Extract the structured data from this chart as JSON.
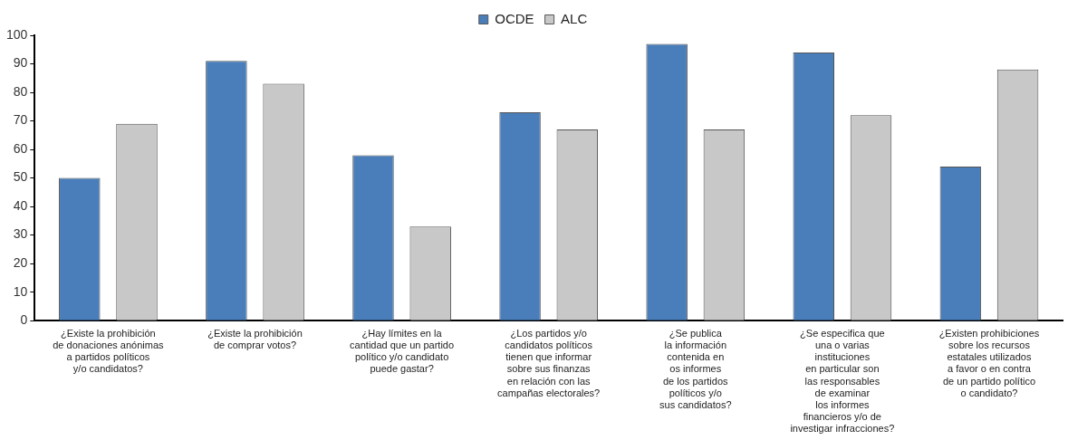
{
  "chart_data": {
    "type": "bar",
    "categories": [
      "¿Existe la prohibición\nde donaciones anónimas\na partidos políticos\ny/o candidatos?",
      "¿Existe la prohibición\nde comprar votos?",
      "¿Hay límites en la\ncantidad que un partido\npolítico y/o candidato\npuede gastar?",
      "¿Los partidos y/o\ncandidatos políticos\ntienen que informar\nsobre sus finanzas\nen relación con las\ncampañas electorales?",
      "¿Se publica\nla información\ncontenida en\nos informes\nde los partidos\npolíticos y/o\nsus candidatos?",
      "¿Se especifica que\nuna o varias\ninstituciones\nen particular son\nlas responsables\nde examinar\nlos informes\nfinancieros y/o de\ninvestigar infracciones?",
      "¿Existen prohibiciones\nsobre los recursos\nestatales utilizados\na favor o en contra\nde un partido político\no candidato?"
    ],
    "series": [
      {
        "name": "OCDE",
        "color": "#4a7ebb",
        "values": [
          50,
          91,
          58,
          73,
          97,
          94,
          54
        ]
      },
      {
        "name": "ALC",
        "color": "#c8c8c8",
        "values": [
          69,
          83,
          33,
          67,
          67,
          72,
          88
        ]
      }
    ],
    "ylim": [
      0,
      100
    ],
    "yticks": [
      0,
      10,
      20,
      30,
      40,
      50,
      60,
      70,
      80,
      90,
      100
    ],
    "grid": false,
    "legend": "top"
  }
}
